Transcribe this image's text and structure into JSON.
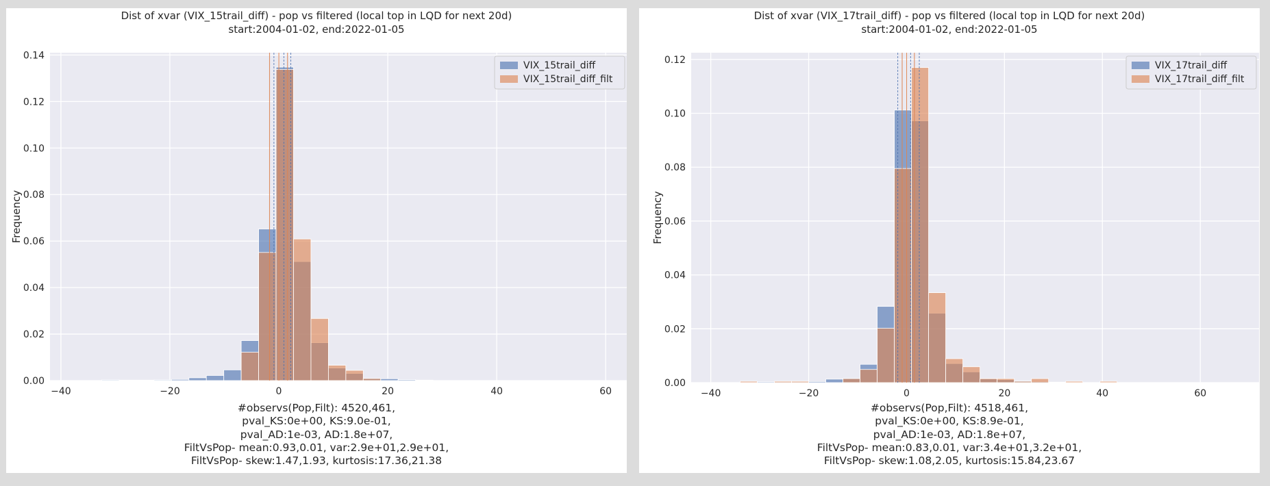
{
  "colors": {
    "population": "#4c72b0",
    "filtered": "#dd8452",
    "plot_background": "#eaeaf2",
    "grid": "#ffffff",
    "frame": "#dcdcdc"
  },
  "chart_data": [
    {
      "type": "histogram",
      "title": "Dist of xvar (VIX_15trail_diff) - pop vs filtered (local top in LQD for next 20d)",
      "subtitle": "start:2004-01-02, end:2022-01-05",
      "xlabel": "",
      "ylabel": "Frequency",
      "xlim": [
        -42,
        64
      ],
      "ylim": [
        0,
        0.141
      ],
      "xticks": [
        -40,
        -20,
        0,
        20,
        40,
        60
      ],
      "yticks": [
        0.0,
        0.02,
        0.04,
        0.06,
        0.08,
        0.1,
        0.12,
        0.14
      ],
      "ytick_labels": [
        "0.00",
        "0.02",
        "0.04",
        "0.06",
        "0.08",
        "0.10",
        "0.12",
        "0.14"
      ],
      "grid": true,
      "legend_position": "top-right",
      "bin_width": 3.2,
      "bin_edges": [
        -32.5,
        -29.3,
        -26.1,
        -22.9,
        -19.7,
        -16.5,
        -13.3,
        -10.1,
        -6.9,
        -3.7,
        -0.5,
        2.7,
        5.9,
        9.1,
        12.3,
        15.5,
        18.7,
        21.9,
        25.1,
        28.3
      ],
      "series": [
        {
          "name": "VIX_15trail_diff",
          "values": [
            0.0003,
            0.0002,
            0.0002,
            0.0003,
            0.0005,
            0.0012,
            0.0022,
            0.0046,
            0.0172,
            0.0652,
            0.1348,
            0.0512,
            0.0163,
            0.0054,
            0.0031,
            0.0009,
            0.0008,
            0.0004,
            0.0002
          ]
        },
        {
          "name": "VIX_15trail_diff_filt",
          "values": [
            0.0,
            0.0,
            0.0,
            0.0,
            0.0,
            0.0,
            0.0,
            0.0,
            0.0122,
            0.0551,
            0.1338,
            0.0609,
            0.0267,
            0.0066,
            0.0044,
            0.0009,
            0.0,
            0.0,
            0.0
          ]
        }
      ],
      "reference_lines": {
        "population": [
          -0.9,
          0.93,
          2.2
        ],
        "filtered": [
          -1.7,
          0.01,
          1.6
        ]
      },
      "stats_text": [
        "#observs(Pop,Filt): 4520,461,",
        "pval_KS:0e+00, KS:9.0e-01,",
        "pval_AD:1e-03, AD:1.8e+07,",
        "FiltVsPop- mean:0.93,0.01, var:2.9e+01,2.9e+01,",
        "FiltVsPop- skew:1.47,1.93, kurtosis:17.36,21.38"
      ]
    },
    {
      "type": "histogram",
      "title": "Dist of xvar (VIX_17trail_diff) - pop vs filtered (local top in LQD for next 20d)",
      "subtitle": "start:2004-01-02, end:2022-01-05",
      "xlabel": "",
      "ylabel": "Frequency",
      "xlim": [
        -44,
        72
      ],
      "ylim": [
        0,
        0.1225
      ],
      "xticks": [
        -40,
        -20,
        0,
        20,
        40,
        60
      ],
      "yticks": [
        0.0,
        0.02,
        0.04,
        0.06,
        0.08,
        0.1,
        0.12
      ],
      "ytick_labels": [
        "0.00",
        "0.02",
        "0.04",
        "0.06",
        "0.08",
        "0.10",
        "0.12"
      ],
      "grid": true,
      "legend_position": "top-right",
      "bin_width": 3.5,
      "bin_edges": [
        -41.0,
        -37.5,
        -34.0,
        -30.5,
        -27.0,
        -23.5,
        -20.0,
        -16.5,
        -13.0,
        -9.5,
        -6.0,
        -2.5,
        1.0,
        4.5,
        8.0,
        11.5,
        15.0,
        18.5,
        22.0,
        25.5,
        29.0,
        32.5,
        36.0,
        39.5,
        43.0
      ],
      "series": [
        {
          "name": "VIX_17trail_diff",
          "values": [
            0.0,
            0.0,
            0.0,
            0.0003,
            0.0003,
            0.0003,
            0.0004,
            0.0013,
            0.0015,
            0.0068,
            0.0283,
            0.1012,
            0.0972,
            0.0258,
            0.0071,
            0.004,
            0.0014,
            0.0011,
            0.0007,
            0.0004,
            0.0002,
            0.0002,
            0.0,
            0.0002
          ]
        },
        {
          "name": "VIX_17trail_diff_filt",
          "values": [
            0.0,
            0.0,
            0.0005,
            0.0,
            0.0005,
            0.0005,
            0.0,
            0.0,
            0.0015,
            0.0049,
            0.0202,
            0.0795,
            0.117,
            0.0334,
            0.0089,
            0.0059,
            0.0015,
            0.0015,
            0.0005,
            0.0015,
            0.0,
            0.0005,
            0.0,
            0.0005
          ]
        }
      ],
      "reference_lines": {
        "population": [
          -1.8,
          0.83,
          2.6
        ],
        "filtered": [
          -0.9,
          0.01,
          1.6
        ]
      },
      "stats_text": [
        "#observs(Pop,Filt): 4518,461,",
        "pval_KS:0e+00, KS:8.9e-01,",
        "pval_AD:1e-03, AD:1.8e+07,",
        "FiltVsPop- mean:0.83,0.01, var:3.4e+01,3.2e+01,",
        "FiltVsPop- skew:1.08,2.05, kurtosis:15.84,23.67"
      ]
    }
  ]
}
